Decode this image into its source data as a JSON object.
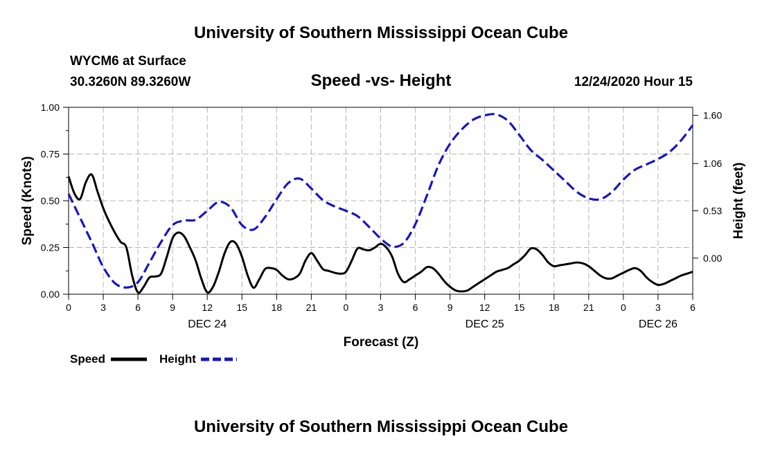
{
  "header": {
    "title": "University of Southern Mississippi Ocean Cube",
    "station": "WYCM6 at Surface",
    "coords": "30.3260N 89.3260W",
    "subtitle": "Speed -vs- Height",
    "run": "12/24/2020 Hour 15"
  },
  "footer": {
    "title": "University of Southern Mississippi Ocean Cube"
  },
  "colors": {
    "speed": "#000000",
    "height": "#1515c8",
    "grid": "#b4b4b4"
  },
  "chart_data": {
    "type": "line",
    "title": "Speed -vs- Height",
    "xlabel": "Forecast (Z)",
    "ylabel": "Speed (Knots)",
    "y2label": "Height (feet)",
    "x_range_hours": [
      0,
      54
    ],
    "ylim": [
      0,
      1.0
    ],
    "y2lim": [
      -0.405,
      1.69
    ],
    "yticks": [
      0,
      0.25,
      0.5,
      0.75,
      1.0
    ],
    "ytick_labels": [
      "0.00",
      "0.25",
      "0.50",
      "0.75",
      "1.00"
    ],
    "y2ticks": [
      0,
      0.53,
      1.06,
      1.6
    ],
    "y2tick_labels": [
      "0.00",
      "0.53",
      "1.06",
      "1.60"
    ],
    "xtick_labels": [
      "0",
      "3",
      "6",
      "9",
      "12",
      "15",
      "18",
      "21",
      "0",
      "3",
      "6",
      "9",
      "12",
      "15",
      "18",
      "21",
      "0",
      "3",
      "6"
    ],
    "day_labels": [
      {
        "label": "DEC 24",
        "hour": 12
      },
      {
        "label": "DEC 25",
        "hour": 36
      },
      {
        "label": "DEC 26",
        "hour": 51
      }
    ],
    "series": [
      {
        "name": "Speed",
        "axis": "left",
        "style": "solid",
        "x": [
          0,
          0.5,
          1,
          1.5,
          2,
          2.5,
          3,
          3.5,
          4,
          4.5,
          5,
          5.5,
          6,
          6.5,
          7,
          7.5,
          8,
          8.5,
          9,
          9.5,
          10,
          10.5,
          11,
          11.5,
          12,
          12.5,
          13,
          13.5,
          14,
          14.5,
          15,
          15.5,
          16,
          16.5,
          17,
          17.5,
          18,
          18.5,
          19,
          19.5,
          20,
          20.5,
          21,
          21.5,
          22,
          22.5,
          23,
          23.5,
          24,
          24.5,
          25,
          25.5,
          26,
          26.5,
          27,
          27.5,
          28,
          28.5,
          29,
          29.5,
          30,
          30.5,
          31,
          31.5,
          32,
          32.5,
          33,
          33.5,
          34,
          34.5,
          35,
          35.5,
          36,
          36.5,
          37,
          37.5,
          38,
          38.5,
          39,
          39.5,
          40,
          40.5,
          41,
          41.5,
          42,
          42.5,
          43,
          43.5,
          44,
          44.5,
          45,
          45.5,
          46,
          46.5,
          47,
          47.5,
          48,
          48.5,
          49,
          49.5,
          50,
          50.5,
          51,
          51.5,
          52,
          52.5,
          53,
          53.5,
          54
        ],
        "values": [
          0.63,
          0.54,
          0.51,
          0.6,
          0.64,
          0.55,
          0.46,
          0.39,
          0.33,
          0.28,
          0.25,
          0.1,
          0.01,
          0.04,
          0.09,
          0.095,
          0.11,
          0.2,
          0.3,
          0.33,
          0.31,
          0.25,
          0.18,
          0.08,
          0.01,
          0.04,
          0.12,
          0.22,
          0.28,
          0.27,
          0.2,
          0.1,
          0.035,
          0.08,
          0.135,
          0.14,
          0.13,
          0.1,
          0.08,
          0.085,
          0.11,
          0.18,
          0.22,
          0.18,
          0.135,
          0.125,
          0.115,
          0.11,
          0.12,
          0.18,
          0.245,
          0.24,
          0.235,
          0.25,
          0.27,
          0.25,
          0.2,
          0.11,
          0.065,
          0.08,
          0.1,
          0.12,
          0.145,
          0.14,
          0.11,
          0.07,
          0.04,
          0.02,
          0.015,
          0.02,
          0.04,
          0.06,
          0.08,
          0.1,
          0.12,
          0.13,
          0.14,
          0.16,
          0.18,
          0.21,
          0.245,
          0.24,
          0.21,
          0.17,
          0.15,
          0.155,
          0.16,
          0.165,
          0.17,
          0.165,
          0.15,
          0.125,
          0.1,
          0.085,
          0.085,
          0.1,
          0.115,
          0.13,
          0.14,
          0.125,
          0.09,
          0.065,
          0.05,
          0.055,
          0.07,
          0.085,
          0.1,
          0.11,
          0.12
        ]
      },
      {
        "name": "Height",
        "axis": "right",
        "style": "dashed",
        "x": [
          0,
          1,
          2,
          3,
          4,
          5,
          6,
          7,
          8,
          9,
          10,
          11,
          12,
          13,
          14,
          15,
          16,
          17,
          18,
          19,
          20,
          21,
          22,
          23,
          24,
          25,
          26,
          27,
          28,
          29,
          30,
          31,
          32,
          33,
          34,
          35,
          36,
          37,
          38,
          39,
          40,
          41,
          42,
          43,
          44,
          45,
          46,
          47,
          48,
          49,
          50,
          51,
          52,
          53,
          54
        ],
        "values": [
          0.72,
          0.45,
          0.18,
          -0.1,
          -0.28,
          -0.33,
          -0.27,
          -0.05,
          0.18,
          0.37,
          0.42,
          0.43,
          0.53,
          0.63,
          0.57,
          0.37,
          0.32,
          0.46,
          0.66,
          0.84,
          0.89,
          0.78,
          0.65,
          0.58,
          0.53,
          0.47,
          0.35,
          0.22,
          0.13,
          0.17,
          0.38,
          0.7,
          1.04,
          1.28,
          1.44,
          1.55,
          1.6,
          1.61,
          1.54,
          1.38,
          1.21,
          1.1,
          0.98,
          0.86,
          0.74,
          0.67,
          0.66,
          0.74,
          0.88,
          0.99,
          1.05,
          1.11,
          1.19,
          1.32,
          1.49
        ]
      }
    ],
    "legend": [
      {
        "label": "Speed",
        "style": "solid"
      },
      {
        "label": "Height",
        "style": "dashed"
      }
    ]
  }
}
